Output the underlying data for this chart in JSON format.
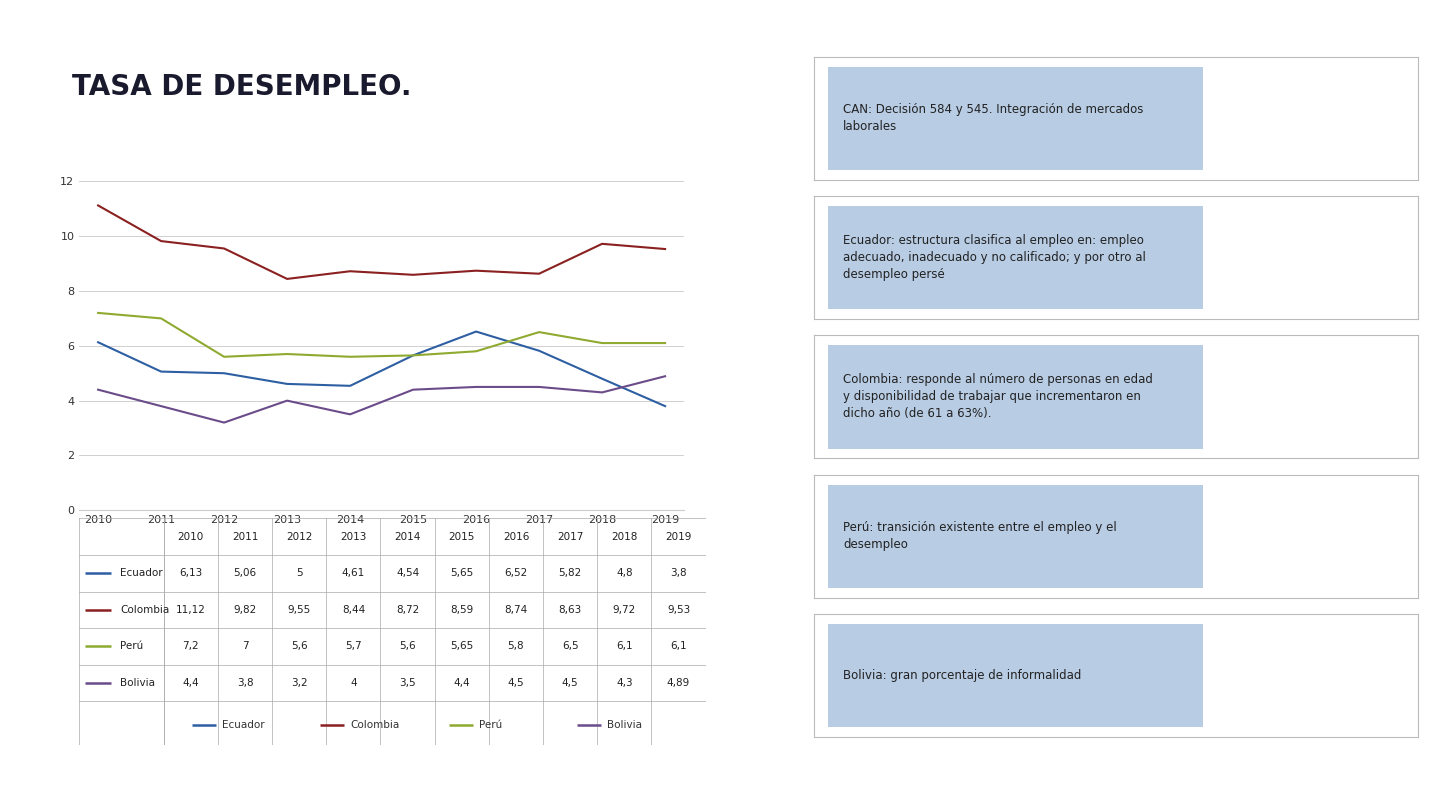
{
  "title": "TASA DE DESEMPLEO.",
  "title_color": "#1a1a2e",
  "accent_bar_color": "#1f3e7c",
  "background_color": "#ffffff",
  "years": [
    2010,
    2011,
    2012,
    2013,
    2014,
    2015,
    2016,
    2017,
    2018,
    2019
  ],
  "series_order": [
    "Ecuador",
    "Colombia",
    "Perú",
    "Bolivia"
  ],
  "series": {
    "Ecuador": [
      6.13,
      5.06,
      5.0,
      4.61,
      4.54,
      5.65,
      6.52,
      5.82,
      4.8,
      3.8
    ],
    "Colombia": [
      11.12,
      9.82,
      9.55,
      8.44,
      8.72,
      8.59,
      8.74,
      8.63,
      9.72,
      9.53
    ],
    "Perú": [
      7.2,
      7.0,
      5.6,
      5.7,
      5.6,
      5.65,
      5.8,
      6.5,
      6.1,
      6.1
    ],
    "Bolivia": [
      4.4,
      3.8,
      3.2,
      4.0,
      3.5,
      4.4,
      4.5,
      4.5,
      4.3,
      4.89
    ]
  },
  "line_colors": {
    "Ecuador": "#2e5fa3",
    "Colombia": "#8b2020",
    "Perú": "#8faa30",
    "Bolivia": "#6b4c8a"
  },
  "ylim": [
    0,
    13
  ],
  "yticks": [
    0,
    2,
    4,
    6,
    8,
    10,
    12
  ],
  "info_boxes": [
    {
      "text": "CAN: Decisión 584 y 545. Integración de mercados\nlaborales",
      "bg_color": "#b8cce4",
      "border_color": "#cccccc"
    },
    {
      "text": "Ecuador: estructura clasifica al empleo en: empleo\nadecuado, inadecuado y no calificado; y por otro al\ndesempleo persé",
      "bg_color": "#b8cce4",
      "border_color": "#cccccc"
    },
    {
      "text": "Colombia: responde al número de personas en edad\ny disponibilidad de trabajar que incrementaron en\ndicho año (de 61 a 63%).",
      "bg_color": "#b8cce4",
      "border_color": "#cccccc"
    },
    {
      "text": "Perú: transición existente entre el empleo y el\ndesempleo",
      "bg_color": "#b8cce4",
      "border_color": "#cccccc"
    },
    {
      "text": "Bolivia: gran porcentaje de informalidad",
      "bg_color": "#b8cce4",
      "border_color": "#cccccc"
    }
  ],
  "table_row_labels": [
    "Ecuador",
    "Colombia",
    "Perú",
    "Bolivia"
  ],
  "table_data": [
    [
      6.13,
      5.06,
      5,
      4.61,
      4.54,
      5.65,
      6.52,
      5.82,
      4.8,
      3.8
    ],
    [
      11.12,
      9.82,
      9.55,
      8.44,
      8.72,
      8.59,
      8.74,
      8.63,
      9.72,
      9.53
    ],
    [
      7.2,
      7,
      5.6,
      5.7,
      5.6,
      5.65,
      5.8,
      6.5,
      6.1,
      6.1
    ],
    [
      4.4,
      3.8,
      3.2,
      4,
      3.5,
      4.4,
      4.5,
      4.5,
      4.3,
      4.89
    ]
  ]
}
